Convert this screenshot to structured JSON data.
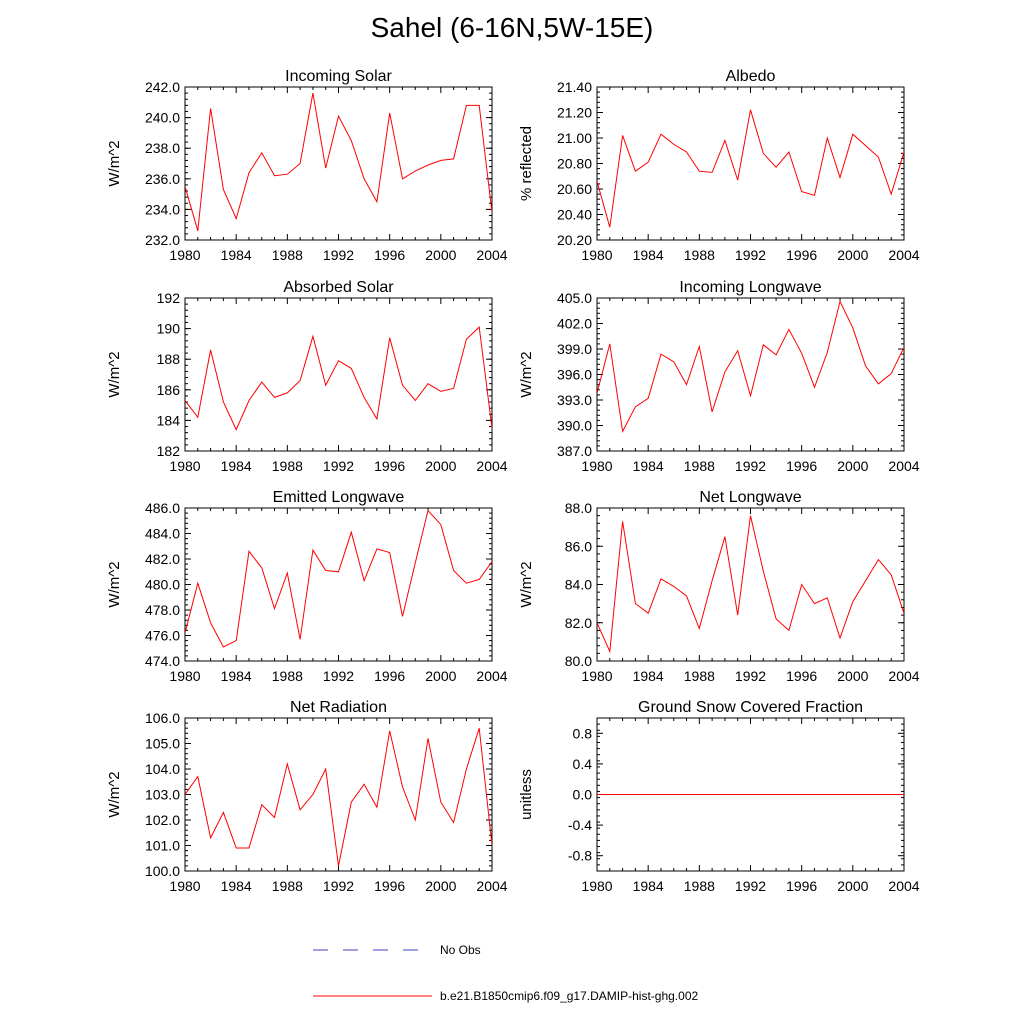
{
  "title": "Sahel (6-16N,5W-15E)",
  "colors": {
    "model": "#ff0000",
    "obs": "#4040c0",
    "axis": "#000000"
  },
  "legend": [
    {
      "label": "No Obs",
      "style": "dashed",
      "color": "#4040c0"
    },
    {
      "label": "b.e21.B1850cmip6.f09_g17.DAMIP-hist-ghg.002",
      "style": "solid",
      "color": "#ff0000"
    }
  ],
  "chart_data": [
    {
      "type": "line",
      "title": "Incoming Solar",
      "ylabel": "W/m^2",
      "xlim": [
        1980,
        2004
      ],
      "ylim": [
        232,
        242
      ],
      "xticks": [
        "1980",
        "1984",
        "1988",
        "1992",
        "1996",
        "2000",
        "2004"
      ],
      "yticks": [
        "232.0",
        "234.0",
        "236.0",
        "238.0",
        "240.0",
        "242.0"
      ],
      "ytick_values": [
        232,
        234,
        236,
        238,
        240,
        242
      ],
      "x": [
        1980,
        1981,
        1982,
        1983,
        1984,
        1985,
        1986,
        1987,
        1988,
        1989,
        1990,
        1991,
        1992,
        1993,
        1994,
        1995,
        1996,
        1997,
        1998,
        1999,
        2000,
        2001,
        2002,
        2003,
        2004
      ],
      "series": [
        {
          "values": [
            235.5,
            232.6,
            240.6,
            235.3,
            233.4,
            236.4,
            237.7,
            236.2,
            236.3,
            237.0,
            241.6,
            236.7,
            240.1,
            238.5,
            236.0,
            234.5,
            240.3,
            236.0,
            236.5,
            236.9,
            237.2,
            237.3,
            240.8,
            240.8,
            233.8
          ]
        }
      ]
    },
    {
      "type": "line",
      "title": "Albedo",
      "ylabel": "% reflected",
      "xlim": [
        1980,
        2004
      ],
      "ylim": [
        20.2,
        21.4
      ],
      "xticks": [
        "1980",
        "1984",
        "1988",
        "1992",
        "1996",
        "2000",
        "2004"
      ],
      "yticks": [
        "20.20",
        "20.40",
        "20.60",
        "20.80",
        "21.00",
        "21.20",
        "21.40"
      ],
      "ytick_values": [
        20.2,
        20.4,
        20.6,
        20.8,
        21.0,
        21.2,
        21.4
      ],
      "x": [
        1980,
        1981,
        1982,
        1983,
        1984,
        1985,
        1986,
        1987,
        1988,
        1989,
        1990,
        1991,
        1992,
        1993,
        1994,
        1995,
        1996,
        1997,
        1998,
        1999,
        2000,
        2001,
        2002,
        2003,
        2004
      ],
      "series": [
        {
          "values": [
            20.66,
            20.3,
            21.02,
            20.74,
            20.81,
            21.03,
            20.95,
            20.89,
            20.74,
            20.73,
            20.98,
            20.67,
            21.22,
            20.88,
            20.77,
            20.89,
            20.58,
            20.55,
            21.0,
            20.69,
            21.03,
            20.94,
            20.85,
            20.56,
            20.89
          ]
        }
      ]
    },
    {
      "type": "line",
      "title": "Absorbed Solar",
      "ylabel": "W/m^2",
      "xlim": [
        1980,
        2004
      ],
      "ylim": [
        182,
        192
      ],
      "xticks": [
        "1980",
        "1984",
        "1988",
        "1992",
        "1996",
        "2000",
        "2004"
      ],
      "yticks": [
        "182",
        "184",
        "186",
        "188",
        "190",
        "192"
      ],
      "ytick_values": [
        182,
        184,
        186,
        188,
        190,
        192
      ],
      "x": [
        1980,
        1981,
        1982,
        1983,
        1984,
        1985,
        1986,
        1987,
        1988,
        1989,
        1990,
        1991,
        1992,
        1993,
        1994,
        1995,
        1996,
        1997,
        1998,
        1999,
        2000,
        2001,
        2002,
        2003,
        2004
      ],
      "series": [
        {
          "values": [
            185.3,
            184.2,
            188.6,
            185.2,
            183.4,
            185.3,
            186.5,
            185.5,
            185.8,
            186.6,
            189.5,
            186.3,
            187.9,
            187.4,
            185.5,
            184.1,
            189.4,
            186.3,
            185.3,
            186.4,
            185.9,
            186.1,
            189.3,
            190.1,
            183.5
          ]
        }
      ]
    },
    {
      "type": "line",
      "title": "Incoming Longwave",
      "ylabel": "W/m^2",
      "xlim": [
        1980,
        2004
      ],
      "ylim": [
        387,
        405
      ],
      "xticks": [
        "1980",
        "1984",
        "1988",
        "1992",
        "1996",
        "2000",
        "2004"
      ],
      "yticks": [
        "387.0",
        "390.0",
        "393.0",
        "396.0",
        "399.0",
        "402.0",
        "405.0"
      ],
      "ytick_values": [
        387,
        390,
        393,
        396,
        399,
        402,
        405
      ],
      "x": [
        1980,
        1981,
        1982,
        1983,
        1984,
        1985,
        1986,
        1987,
        1988,
        1989,
        1990,
        1991,
        1992,
        1993,
        1994,
        1995,
        1996,
        1997,
        1998,
        1999,
        2000,
        2001,
        2002,
        2003,
        2004
      ],
      "series": [
        {
          "values": [
            393.8,
            399.6,
            389.3,
            392.2,
            393.2,
            398.4,
            397.5,
            394.8,
            399.3,
            391.6,
            396.3,
            398.8,
            393.5,
            399.5,
            398.3,
            401.3,
            398.5,
            394.5,
            398.6,
            404.6,
            401.5,
            397.0,
            394.9,
            396.1,
            399.2
          ]
        }
      ]
    },
    {
      "type": "line",
      "title": "Emitted Longwave",
      "ylabel": "W/m^2",
      "xlim": [
        1980,
        2004
      ],
      "ylim": [
        474,
        486
      ],
      "xticks": [
        "1980",
        "1984",
        "1988",
        "1992",
        "1996",
        "2000",
        "2004"
      ],
      "yticks": [
        "474.0",
        "476.0",
        "478.0",
        "480.0",
        "482.0",
        "484.0",
        "486.0"
      ],
      "ytick_values": [
        474,
        476,
        478,
        480,
        482,
        484,
        486
      ],
      "x": [
        1980,
        1981,
        1982,
        1983,
        1984,
        1985,
        1986,
        1987,
        1988,
        1989,
        1990,
        1991,
        1992,
        1993,
        1994,
        1995,
        1996,
        1997,
        1998,
        1999,
        2000,
        2001,
        2002,
        2003,
        2004
      ],
      "series": [
        {
          "values": [
            476.2,
            480.1,
            477.0,
            475.1,
            475.6,
            482.6,
            481.3,
            478.1,
            480.9,
            475.7,
            482.7,
            481.1,
            481.0,
            484.1,
            480.3,
            482.8,
            482.5,
            477.5,
            481.7,
            485.8,
            484.7,
            481.1,
            480.1,
            480.4,
            481.8
          ]
        }
      ]
    },
    {
      "type": "line",
      "title": "Net Longwave",
      "ylabel": "W/m^2",
      "xlim": [
        1980,
        2004
      ],
      "ylim": [
        80,
        88
      ],
      "xticks": [
        "1980",
        "1984",
        "1988",
        "1992",
        "1996",
        "2000",
        "2004"
      ],
      "yticks": [
        "80.0",
        "82.0",
        "84.0",
        "86.0",
        "88.0"
      ],
      "ytick_values": [
        80,
        82,
        84,
        86,
        88
      ],
      "x": [
        1980,
        1981,
        1982,
        1983,
        1984,
        1985,
        1986,
        1987,
        1988,
        1989,
        1990,
        1991,
        1992,
        1993,
        1994,
        1995,
        1996,
        1997,
        1998,
        1999,
        2000,
        2001,
        2002,
        2003,
        2004
      ],
      "series": [
        {
          "values": [
            82.0,
            80.5,
            87.3,
            83.0,
            82.5,
            84.3,
            83.9,
            83.4,
            81.7,
            84.2,
            86.5,
            82.4,
            87.6,
            84.7,
            82.2,
            81.6,
            84.0,
            83.0,
            83.3,
            81.2,
            83.1,
            84.2,
            85.3,
            84.5,
            82.5
          ]
        }
      ]
    },
    {
      "type": "line",
      "title": "Net Radiation",
      "ylabel": "W/m^2",
      "xlim": [
        1980,
        2004
      ],
      "ylim": [
        100,
        106
      ],
      "xticks": [
        "1980",
        "1984",
        "1988",
        "1992",
        "1996",
        "2000",
        "2004"
      ],
      "yticks": [
        "100.0",
        "101.0",
        "102.0",
        "103.0",
        "104.0",
        "105.0",
        "106.0"
      ],
      "ytick_values": [
        100,
        101,
        102,
        103,
        104,
        105,
        106
      ],
      "x": [
        1980,
        1981,
        1982,
        1983,
        1984,
        1985,
        1986,
        1987,
        1988,
        1989,
        1990,
        1991,
        1992,
        1993,
        1994,
        1995,
        1996,
        1997,
        1998,
        1999,
        2000,
        2001,
        2002,
        2003,
        2004
      ],
      "series": [
        {
          "values": [
            103.0,
            103.7,
            101.3,
            102.3,
            100.9,
            100.9,
            102.6,
            102.1,
            104.2,
            102.4,
            103.0,
            104.0,
            100.2,
            102.7,
            103.4,
            102.5,
            105.5,
            103.3,
            102.0,
            105.2,
            102.7,
            101.9,
            104.0,
            105.6,
            101.0
          ]
        }
      ]
    },
    {
      "type": "line",
      "title": "Ground Snow Covered Fraction",
      "ylabel": "unitless",
      "xlim": [
        1980,
        2004
      ],
      "ylim": [
        -1,
        1
      ],
      "xticks": [
        "1980",
        "1984",
        "1988",
        "1992",
        "1996",
        "2000",
        "2004"
      ],
      "yticks": [
        "-0.8",
        "-0.4",
        "0.0",
        "0.4",
        "0.8"
      ],
      "ytick_values": [
        -0.8,
        -0.4,
        0.0,
        0.4,
        0.8
      ],
      "x": [
        1980,
        2004
      ],
      "series": [
        {
          "values": [
            0.0,
            0.0
          ]
        }
      ]
    }
  ]
}
